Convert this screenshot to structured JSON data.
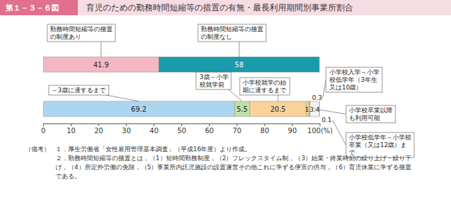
{
  "chart_data": {
    "type": "bar",
    "orientation": "horizontal",
    "stacked": true,
    "data_labels": true,
    "tick_labels": "x",
    "grid": false,
    "figure_number": "第１－３－６図",
    "title": "育児のための勤務時間短縮等の措置の有無・最長利用期間別事業所割合",
    "categories": [
      null,
      null
    ],
    "series": [
      {
        "name": "勤務時間短縮等の措置の制度あり",
        "color": "#f4b8c4",
        "values": [
          41.9,
          null
        ]
      },
      {
        "name": "勤務時間短縮等の措置の制度なし",
        "color": "#1a9bab",
        "values": [
          58.0,
          null
        ]
      },
      {
        "name": "～3歳に達するまで",
        "color": "#acd6f0",
        "values": [
          null,
          69.2
        ]
      },
      {
        "name": "3歳～小学校就学前",
        "color": "#bfe0a6",
        "values": [
          null,
          5.5
        ]
      },
      {
        "name": "小学校就学の始期に達するまで",
        "color": "#fad199",
        "values": [
          null,
          20.5
        ]
      },
      {
        "color": "#ece07a",
        "values": [
          null,
          1.0
        ]
      },
      {
        "name": "小学校入学～小学校低学年（3年生又は10歳）",
        "color": "#d7bfe3",
        "values": [
          null,
          0.3
        ]
      },
      {
        "name": "小学校卒業以降も利用可能",
        "color": "#f3f3f3",
        "values": [
          null,
          3.4
        ]
      },
      {
        "name": "小学校低学年～小学校卒業（又は12歳）まで",
        "color": "#bdbdbd",
        "values": [
          null,
          0.1
        ]
      }
    ],
    "xlim": [
      0,
      100
    ],
    "xticks": [
      0,
      10,
      20,
      30,
      40,
      50,
      60,
      70,
      80,
      90,
      {
        "value": 100,
        "label": "100(%)"
      }
    ],
    "notes_label": "（備考）",
    "notes": [
      "１．厚生労働省「女性雇用管理基本調査」（平成16年度）より作成。",
      "２．勤務時間短縮等の措置とは，（1）短時間勤務制度，（2）フレックスタイム制，（3）始業・終業時刻の繰り上げ・繰り下げ，（4）所定外労働の免除，（5）事業所内託児施設の設置運営その他これに準ずる便宜の供与，（6）育児休業に準ずる措置である。"
    ]
  }
}
